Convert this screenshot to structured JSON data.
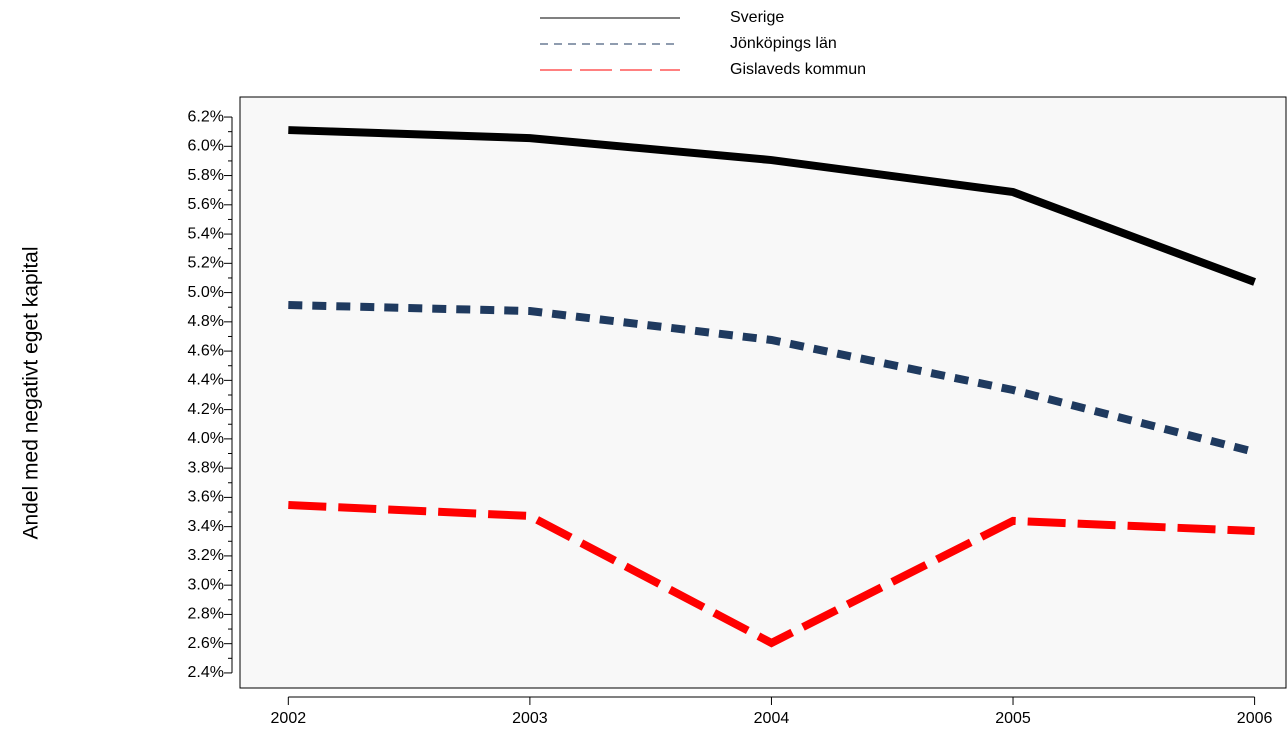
{
  "chart_data": {
    "type": "line",
    "y_label": "Andel med negativt eget kapital",
    "x": [
      2002,
      2003,
      2004,
      2005,
      2006
    ],
    "xlim": [
      2001.8,
      2006.13
    ],
    "xticks": [
      2002,
      2003,
      2004,
      2005,
      2006
    ],
    "ylim": [
      2.297,
      6.337
    ],
    "yticks": [
      {
        "value": 2.4,
        "label": "2.4%"
      },
      {
        "value": 2.6,
        "label": "2.6%"
      },
      {
        "value": 2.8,
        "label": "2.8%"
      },
      {
        "value": 3.0,
        "label": "3.0%"
      },
      {
        "value": 3.2,
        "label": "3.2%"
      },
      {
        "value": 3.4,
        "label": "3.4%"
      },
      {
        "value": 3.6,
        "label": "3.6%"
      },
      {
        "value": 3.8,
        "label": "3.8%"
      },
      {
        "value": 4.0,
        "label": "4.0%"
      },
      {
        "value": 4.2,
        "label": "4.2%"
      },
      {
        "value": 4.4,
        "label": "4.4%"
      },
      {
        "value": 4.6,
        "label": "4.6%"
      },
      {
        "value": 4.8,
        "label": "4.8%"
      },
      {
        "value": 5.0,
        "label": "5.0%"
      },
      {
        "value": 5.2,
        "label": "5.2%"
      },
      {
        "value": 5.4,
        "label": "5.4%"
      },
      {
        "value": 5.6,
        "label": "5.6%"
      },
      {
        "value": 5.8,
        "label": "5.8%"
      },
      {
        "value": 6.0,
        "label": "6.0%"
      },
      {
        "value": 6.2,
        "label": "6.2%"
      }
    ],
    "series": [
      {
        "name": "Sverige",
        "color": "#000000",
        "dash": "solid",
        "values": [
          6.111,
          6.056,
          5.906,
          5.687,
          5.072
        ]
      },
      {
        "name": "Jönköpings län",
        "color": "#1f3a5f",
        "dash": "dotted",
        "values": [
          4.915,
          4.874,
          4.676,
          4.334,
          3.91
        ]
      },
      {
        "name": "Gislaveds kommun",
        "color": "#ff0000",
        "dash": "dashed",
        "values": [
          3.548,
          3.473,
          2.605,
          3.439,
          3.37
        ]
      }
    ]
  }
}
